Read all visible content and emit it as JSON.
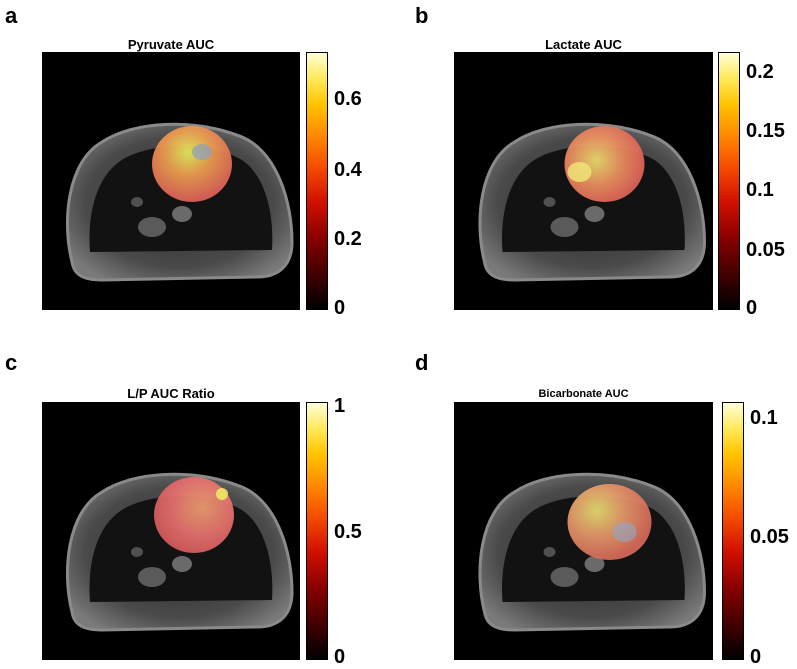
{
  "panels": [
    {
      "letter": "a",
      "title": "Pyruvate AUC",
      "ticks": [
        "0.6",
        "0.4",
        "0.2",
        "0"
      ]
    },
    {
      "letter": "b",
      "title": "Lactate AUC",
      "ticks": [
        "0.2",
        "0.15",
        "0.1",
        "0.05",
        "0"
      ]
    },
    {
      "letter": "c",
      "title": "L/P AUC Ratio",
      "ticks": [
        "1",
        "0.5",
        "0"
      ]
    },
    {
      "letter": "d",
      "title": "Bicarbonate AUC",
      "ticks": [
        "0.1",
        "0.05",
        "0"
      ]
    }
  ],
  "colormap": "hot",
  "colors": {
    "background": "#ffffff",
    "image_bg": "#000000"
  }
}
